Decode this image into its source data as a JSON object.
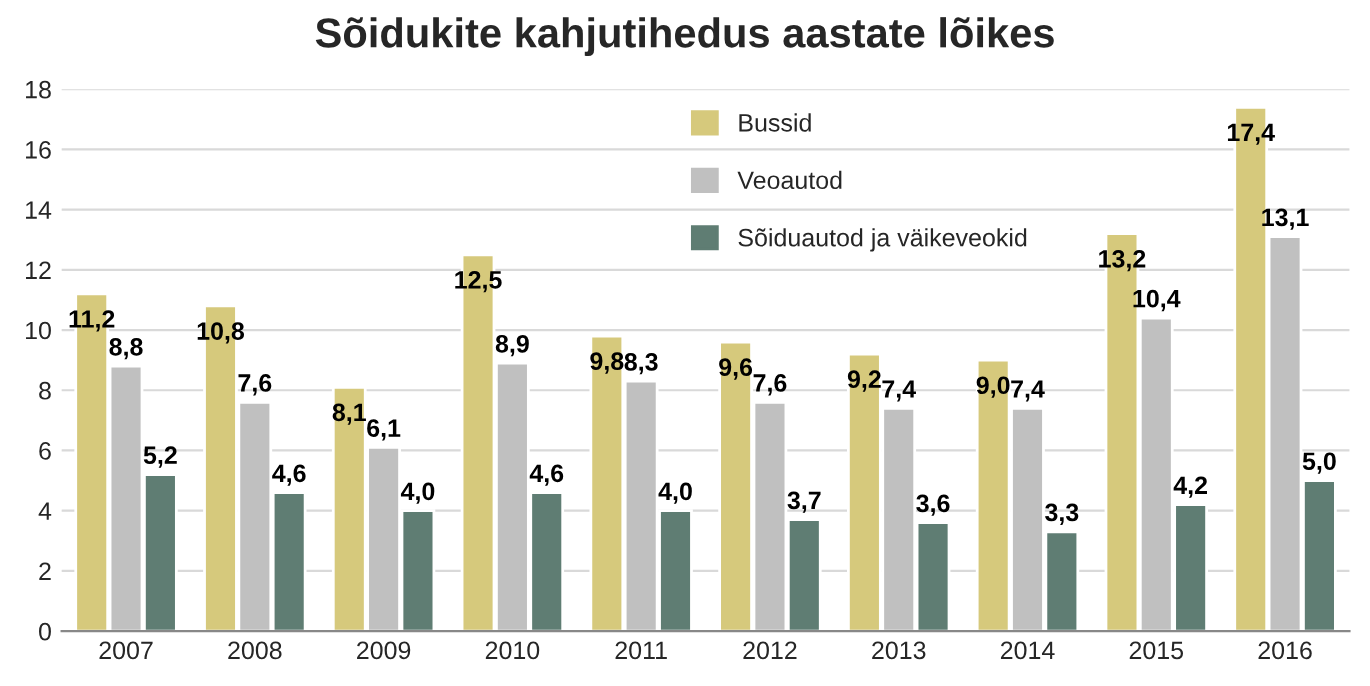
{
  "chart_data": {
    "type": "bar",
    "title": "Sõidukite kahjutihedus aastate lõikes",
    "categories": [
      "2007",
      "2008",
      "2009",
      "2010",
      "2011",
      "2012",
      "2013",
      "2014",
      "2015",
      "2016"
    ],
    "series": [
      {
        "name": "Bussid",
        "color": "#d6c97c",
        "values": [
          11.2,
          10.8,
          8.1,
          12.5,
          9.8,
          9.6,
          9.2,
          9.0,
          13.2,
          17.4
        ],
        "value_labels": [
          "11,2",
          "10,8",
          "8,1",
          "12,5",
          "9,8",
          "9,6",
          "9,2",
          "9,0",
          "13,2",
          "17,4"
        ]
      },
      {
        "name": "Veoautod",
        "color": "#c0c0c0",
        "values": [
          8.8,
          7.6,
          6.1,
          8.9,
          8.3,
          7.6,
          7.4,
          7.4,
          10.4,
          13.1
        ],
        "value_labels": [
          "8,8",
          "7,6",
          "6,1",
          "8,9",
          "8,3",
          "7,6",
          "7,4",
          "7,4",
          "10,4",
          "13,1"
        ]
      },
      {
        "name": "Sõiduautod ja väikeveokid",
        "color": "#5f7d73",
        "values": [
          5.2,
          4.6,
          4.0,
          4.6,
          4.0,
          3.7,
          3.6,
          3.3,
          4.2,
          5.0
        ],
        "value_labels": [
          "5,2",
          "4,6",
          "4,0",
          "4,6",
          "4,0",
          "3,7",
          "3,6",
          "3,3",
          "4,2",
          "5,0"
        ]
      }
    ],
    "ylim": [
      0,
      18
    ],
    "yticks": [
      0,
      2,
      4,
      6,
      8,
      10,
      12,
      14,
      16,
      18
    ],
    "grid": "y",
    "legend": "top"
  }
}
